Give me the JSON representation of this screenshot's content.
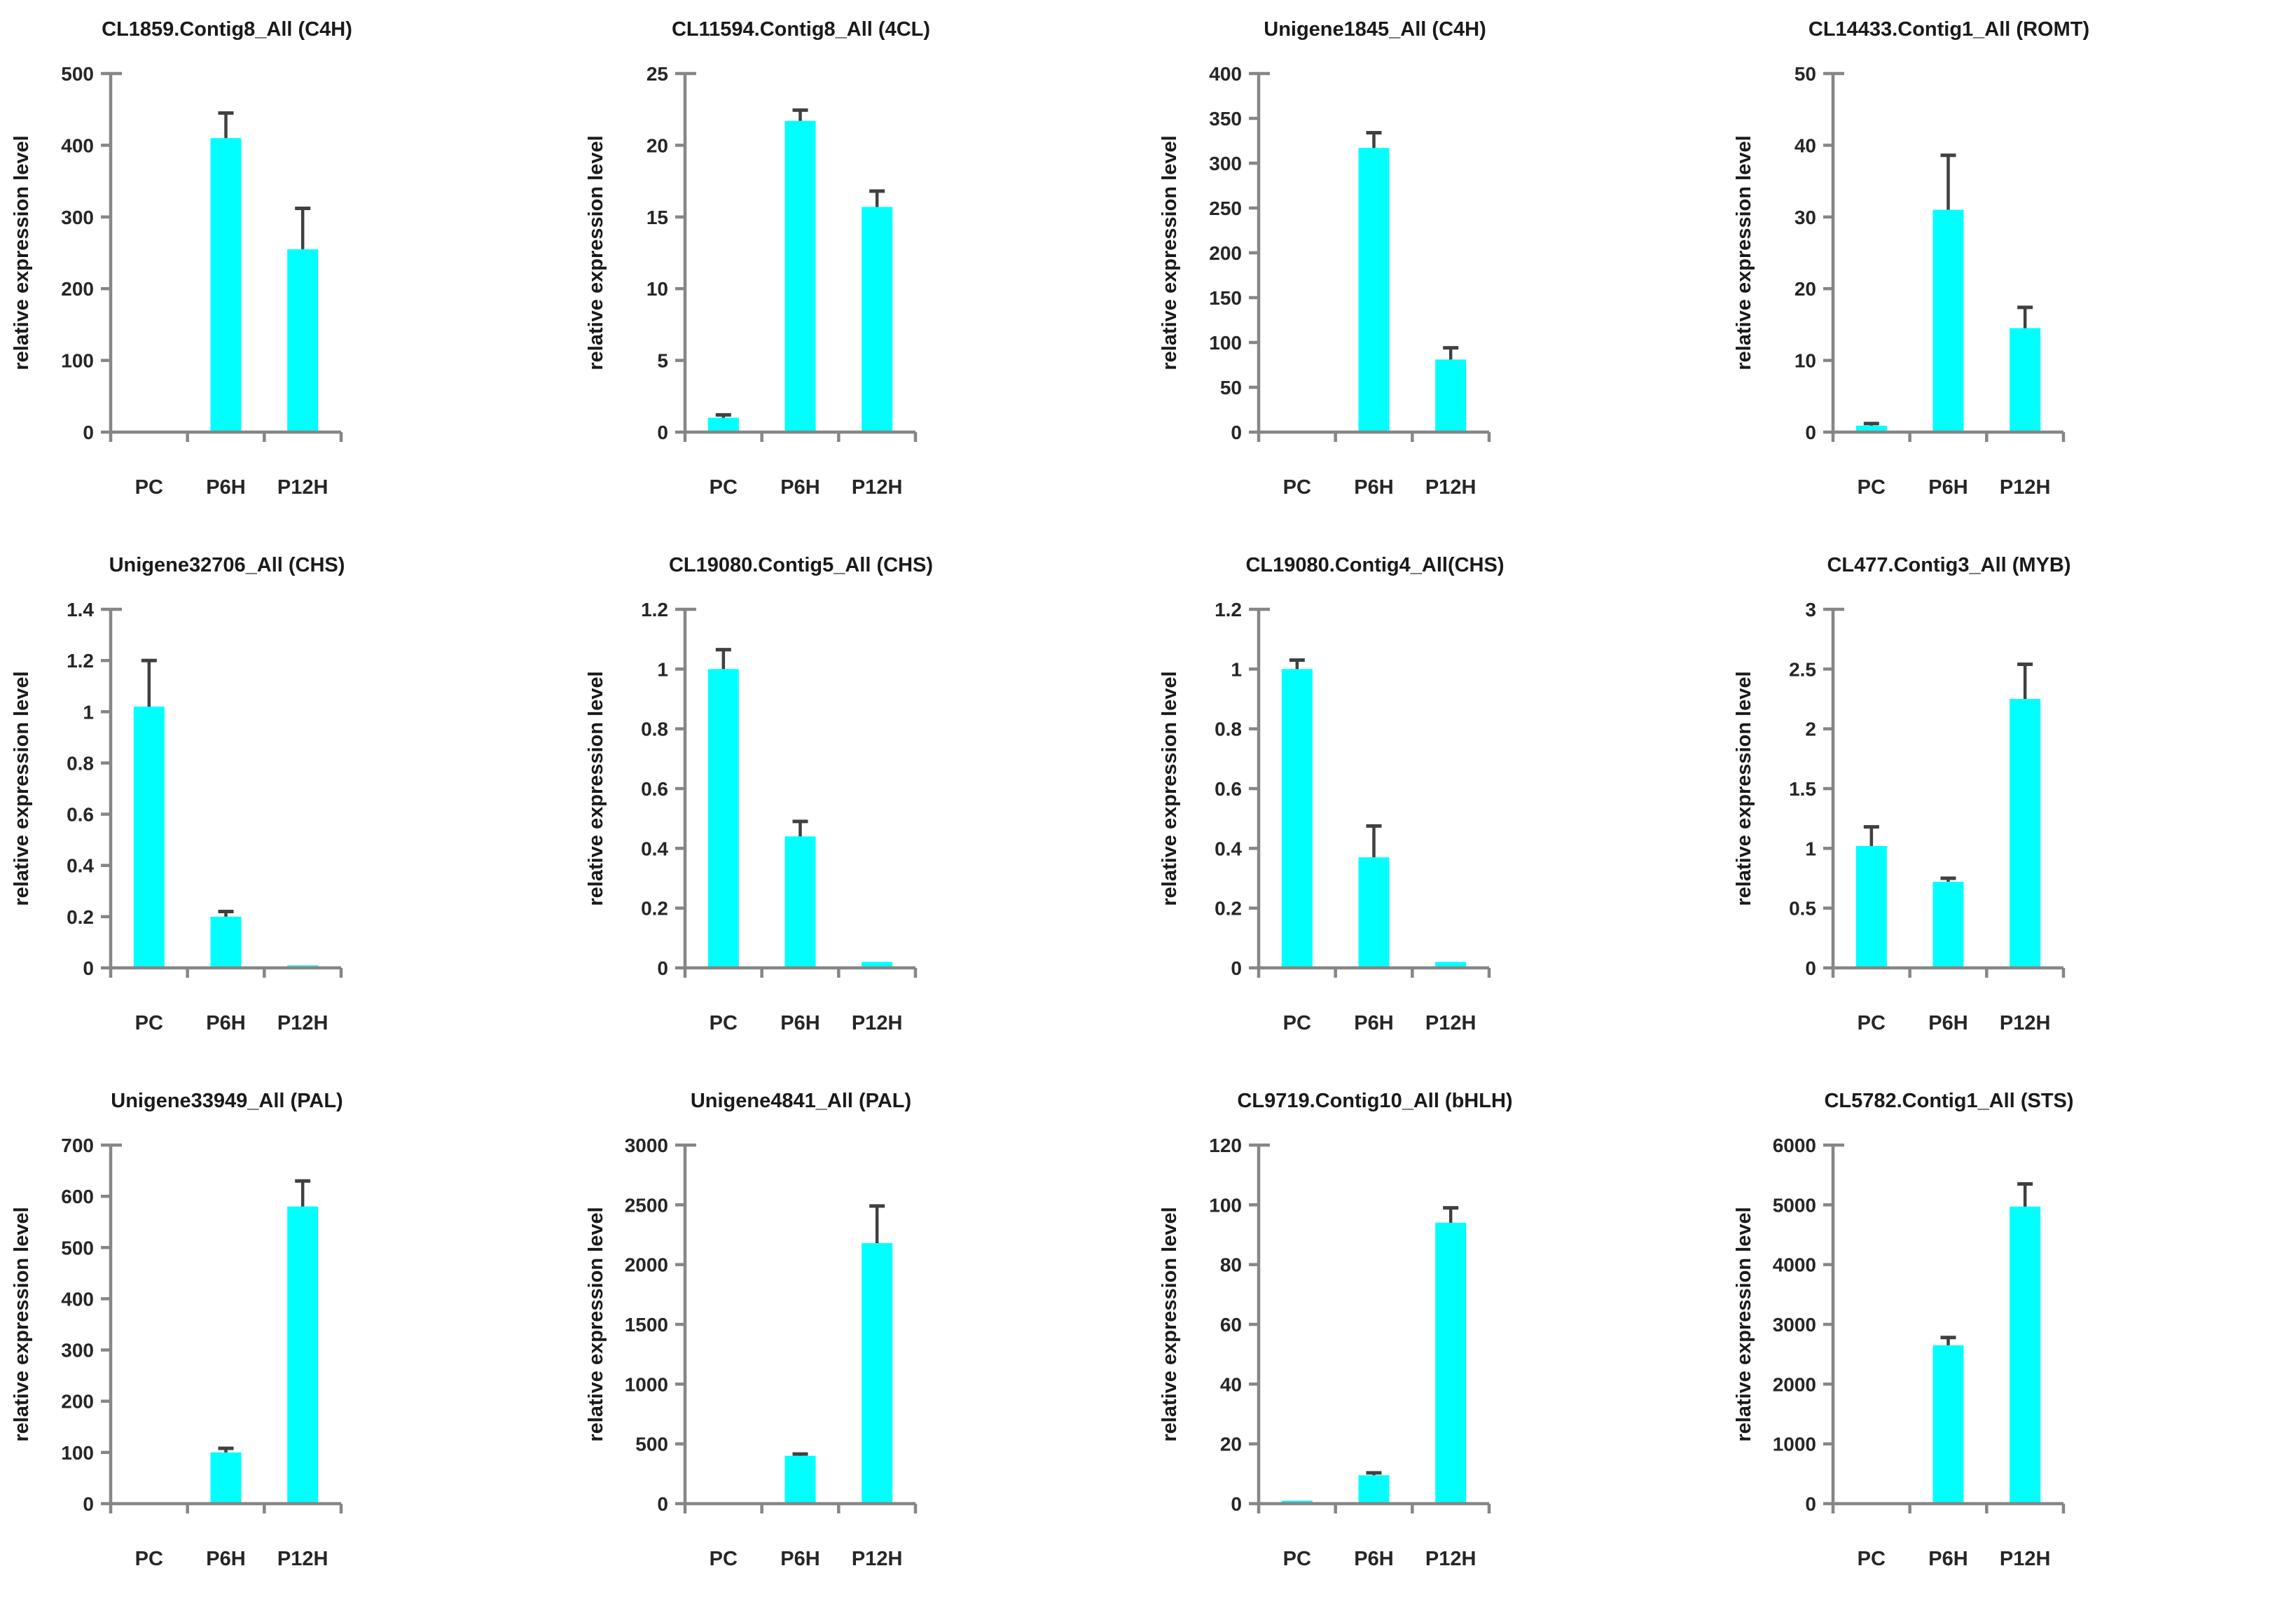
{
  "page": {
    "background": "#ffffff"
  },
  "style": {
    "bar_color": "#00ffff",
    "error_color": "#404040",
    "axis_color": "#868686",
    "text_color": "#262626",
    "title_color": "#1a1a1a"
  },
  "chart_data": [
    {
      "type": "bar",
      "title": "CL1859.Contig8_All (C4H)",
      "ylabel": "relative expression level",
      "categories": [
        "PC",
        "P6H",
        "P12H"
      ],
      "values": [
        1,
        410,
        255
      ],
      "errors": [
        0,
        35,
        57
      ],
      "ylim": [
        0,
        500
      ],
      "yticks": [
        0,
        100,
        200,
        300,
        400,
        500
      ],
      "grid": false,
      "legend": "none"
    },
    {
      "type": "bar",
      "title": "CL11594.Contig8_All (4CL)",
      "ylabel": "relative expression level",
      "categories": [
        "PC",
        "P6H",
        "P12H"
      ],
      "values": [
        1,
        21.7,
        15.7
      ],
      "errors": [
        0.2,
        0.75,
        1.1
      ],
      "ylim": [
        0,
        25
      ],
      "yticks": [
        0,
        5,
        10,
        15,
        20,
        25
      ],
      "grid": false,
      "legend": "none"
    },
    {
      "type": "bar",
      "title": "Unigene1845_All (C4H)",
      "ylabel": "relative expression level",
      "categories": [
        "PC",
        "P6H",
        "P12H"
      ],
      "values": [
        1,
        317,
        81
      ],
      "errors": [
        0,
        17,
        13
      ],
      "ylim": [
        0,
        400
      ],
      "yticks": [
        0,
        50,
        100,
        150,
        200,
        250,
        300,
        350,
        400
      ],
      "grid": false,
      "legend": "none"
    },
    {
      "type": "bar",
      "title": "CL14433.Contig1_All (ROMT)",
      "ylabel": "relative expression level",
      "categories": [
        "PC",
        "P6H",
        "P12H"
      ],
      "values": [
        0.9,
        31,
        14.5
      ],
      "errors": [
        0.3,
        7.6,
        2.9
      ],
      "ylim": [
        0,
        50
      ],
      "yticks": [
        0,
        10,
        20,
        30,
        40,
        50
      ],
      "grid": false,
      "legend": "none"
    },
    {
      "type": "bar",
      "title": "Unigene32706_All (CHS)",
      "ylabel": "relative expression level",
      "categories": [
        "PC",
        "P6H",
        "P12H"
      ],
      "values": [
        1.02,
        0.2,
        0.01
      ],
      "errors": [
        0.18,
        0.02,
        0
      ],
      "ylim": [
        0,
        1.4
      ],
      "yticks": [
        0,
        0.2,
        0.4,
        0.6,
        0.8,
        1,
        1.2,
        1.4
      ],
      "grid": false,
      "legend": "none"
    },
    {
      "type": "bar",
      "title": "CL19080.Contig5_All (CHS)",
      "ylabel": "relative expression level",
      "categories": [
        "PC",
        "P6H",
        "P12H"
      ],
      "values": [
        1.0,
        0.44,
        0.02
      ],
      "errors": [
        0.065,
        0.05,
        0
      ],
      "ylim": [
        0,
        1.2
      ],
      "yticks": [
        0,
        0.2,
        0.4,
        0.6,
        0.8,
        1,
        1.2
      ],
      "grid": false,
      "legend": "none"
    },
    {
      "type": "bar",
      "title": "CL19080.Contig4_All(CHS)",
      "ylabel": "relative expression level",
      "categories": [
        "PC",
        "P6H",
        "P12H"
      ],
      "values": [
        1.0,
        0.37,
        0.02
      ],
      "errors": [
        0.03,
        0.105,
        0
      ],
      "ylim": [
        0,
        1.2
      ],
      "yticks": [
        0,
        0.2,
        0.4,
        0.6,
        0.8,
        1,
        1.2
      ],
      "grid": false,
      "legend": "none"
    },
    {
      "type": "bar",
      "title": "CL477.Contig3_All (MYB)",
      "ylabel": "relative expression level",
      "categories": [
        "PC",
        "P6H",
        "P12H"
      ],
      "values": [
        1.02,
        0.72,
        2.25
      ],
      "errors": [
        0.16,
        0.03,
        0.29
      ],
      "ylim": [
        0,
        3
      ],
      "yticks": [
        0,
        0.5,
        1,
        1.5,
        2,
        2.5,
        3
      ],
      "grid": false,
      "legend": "none"
    },
    {
      "type": "bar",
      "title": "Unigene33949_All (PAL)",
      "ylabel": "relative expression level",
      "categories": [
        "PC",
        "P6H",
        "P12H"
      ],
      "values": [
        1,
        100,
        580
      ],
      "errors": [
        0,
        8,
        50
      ],
      "ylim": [
        0,
        700
      ],
      "yticks": [
        0,
        100,
        200,
        300,
        400,
        500,
        600,
        700
      ],
      "grid": false,
      "legend": "none"
    },
    {
      "type": "bar",
      "title": "Unigene4841_All (PAL)",
      "ylabel": "relative expression level",
      "categories": [
        "PC",
        "P6H",
        "P12H"
      ],
      "values": [
        2,
        400,
        2180
      ],
      "errors": [
        0,
        15,
        310
      ],
      "ylim": [
        0,
        3000
      ],
      "yticks": [
        0,
        500,
        1000,
        1500,
        2000,
        2500,
        3000
      ],
      "grid": false,
      "legend": "none"
    },
    {
      "type": "bar",
      "title": "CL9719.Contig10_All (bHLH)",
      "ylabel": "relative expression level",
      "categories": [
        "PC",
        "P6H",
        "P12H"
      ],
      "values": [
        1,
        9.5,
        94
      ],
      "errors": [
        0,
        0.8,
        5
      ],
      "ylim": [
        0,
        120
      ],
      "yticks": [
        0,
        20,
        40,
        60,
        80,
        100,
        120
      ],
      "grid": false,
      "legend": "none"
    },
    {
      "type": "bar",
      "title": "CL5782.Contig1_All (STS)",
      "ylabel": "relative expression level",
      "categories": [
        "PC",
        "P6H",
        "P12H"
      ],
      "values": [
        2,
        2650,
        4970
      ],
      "errors": [
        0,
        130,
        380
      ],
      "ylim": [
        0,
        6000
      ],
      "yticks": [
        0,
        1000,
        2000,
        3000,
        4000,
        5000,
        6000
      ],
      "grid": false,
      "legend": "none"
    }
  ]
}
